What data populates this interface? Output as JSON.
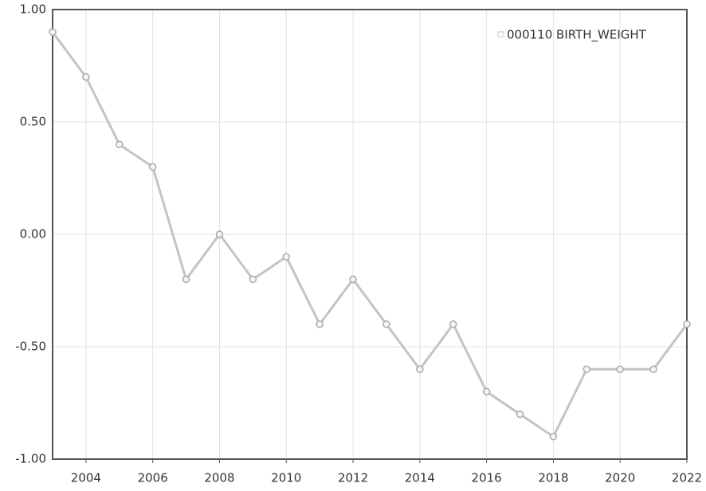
{
  "chart_data": {
    "type": "line",
    "x": [
      2003,
      2004,
      2005,
      2006,
      2007,
      2008,
      2009,
      2010,
      2011,
      2012,
      2013,
      2014,
      2015,
      2016,
      2017,
      2018,
      2019,
      2020,
      2021,
      2022
    ],
    "series": [
      {
        "name": "000110 BIRTH_WEIGHT",
        "color": "#c4c4c4",
        "values": [
          0.9,
          0.7,
          0.4,
          0.3,
          -0.2,
          0.0,
          -0.2,
          -0.1,
          -0.4,
          -0.2,
          -0.4,
          -0.6,
          -0.4,
          -0.7,
          -0.8,
          -0.9,
          -0.6,
          -0.6,
          -0.6,
          -0.4
        ]
      }
    ],
    "xlim": [
      2003,
      2022
    ],
    "xticks": [
      2004,
      2006,
      2008,
      2010,
      2012,
      2014,
      2016,
      2018,
      2020,
      2022
    ],
    "ylim": [
      -1,
      1
    ],
    "yticks": [
      {
        "value": -1,
        "label": "-1.00"
      },
      {
        "value": -0.5,
        "label": "-0.50"
      },
      {
        "value": 0,
        "label": "0.00"
      },
      {
        "value": 0.5,
        "label": "0.50"
      },
      {
        "value": 1,
        "label": "1.00"
      }
    ],
    "grid": true,
    "legend": "top-right"
  }
}
